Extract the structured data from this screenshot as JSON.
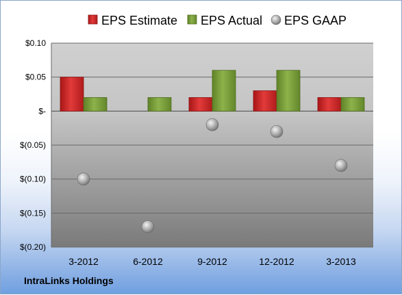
{
  "company": "IntraLinks Holdings",
  "colors": {
    "estimate": "#d42a2a",
    "actual": "#7da23b",
    "gaap": "#b0b0b0"
  },
  "chart_data": {
    "type": "bar",
    "categories": [
      "3-2012",
      "6-2012",
      "9-2012",
      "12-2012",
      "3-2013"
    ],
    "series": [
      {
        "name": "EPS Estimate",
        "kind": "bar",
        "values": [
          0.05,
          null,
          0.02,
          0.03,
          0.02
        ]
      },
      {
        "name": "EPS Actual",
        "kind": "bar",
        "values": [
          0.02,
          0.02,
          0.06,
          0.06,
          0.02
        ]
      },
      {
        "name": "EPS GAAP",
        "kind": "marker",
        "values": [
          -0.1,
          -0.17,
          -0.02,
          -0.03,
          -0.08
        ]
      }
    ],
    "ylim": [
      -0.2,
      0.1
    ],
    "yticks": [
      0.1,
      0.05,
      0.0,
      -0.05,
      -0.1,
      -0.15,
      -0.2
    ],
    "ytick_labels": [
      "$0.10",
      "$0.05",
      "$-",
      "$(0.05)",
      "$(0.10)",
      "$(0.15)",
      "$(0.20)"
    ],
    "legend_position": "top",
    "grid": true
  }
}
